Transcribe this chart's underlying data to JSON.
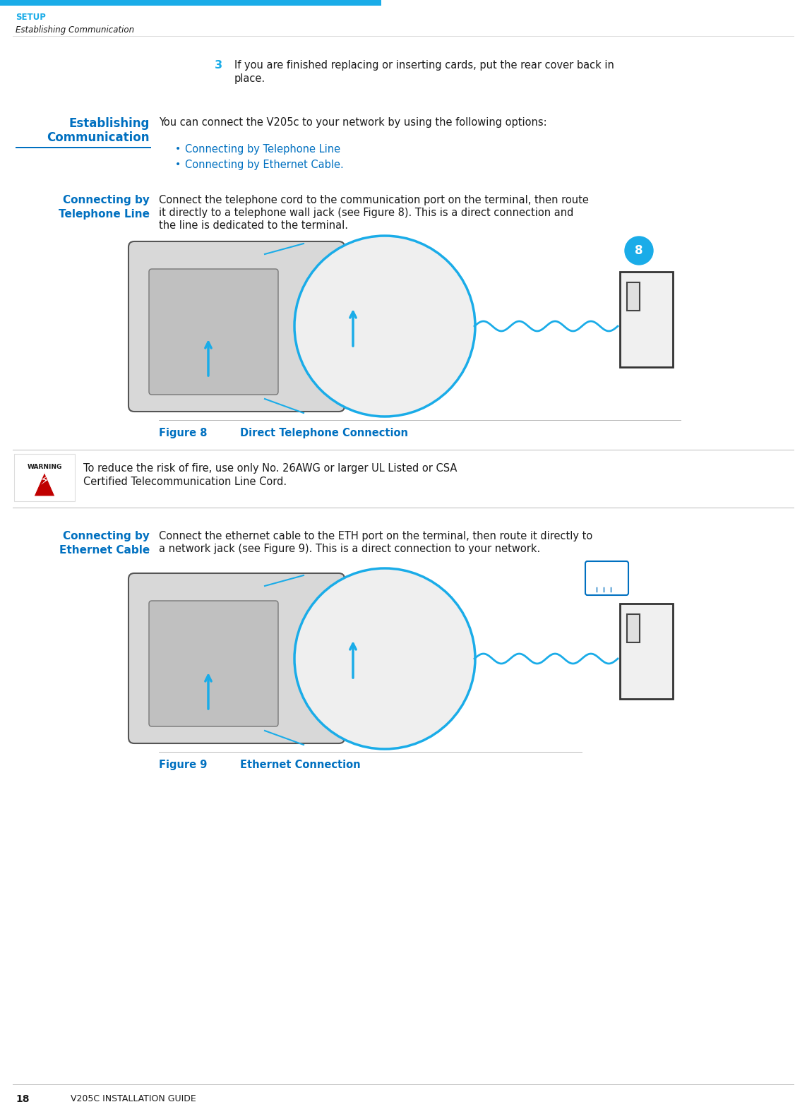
{
  "page_width": 11.43,
  "page_height": 15.78,
  "dpi": 100,
  "bg_color": "#ffffff",
  "sky_blue": "#1AACE8",
  "dark_blue": "#0070C0",
  "red_color": "#C00000",
  "black_color": "#1a1a1a",
  "light_gray": "#dddddd",
  "divider_color": "#bbbbbb",
  "header_bg_color": "#1AACE8",
  "header_setup": "SETUP",
  "header_sub": "Establishing Communication",
  "step_number": "3",
  "step_text_line1": "If you are finished replacing or inserting cards, put the rear cover back in",
  "step_text_line2": "place.",
  "heading1_line1": "Establishing",
  "heading1_line2": "Communication",
  "body1": "You can connect the V205c to your network by using the following options:",
  "bullet1": "Connecting by Telephone Line",
  "bullet2": "Connecting by Ethernet Cable.",
  "heading2_line1": "Connecting by",
  "heading2_line2": "Telephone Line",
  "body2_line1": "Connect the telephone cord to the communication port on the terminal, then route",
  "body2_line2": "it directly to a telephone wall jack (see Figure 8). This is a direct connection and",
  "body2_line3": "the line is dedicated to the terminal.",
  "fig8_label": "Figure 8",
  "fig8_caption": "Direct Telephone Connection",
  "warning_title": "WARNING",
  "warning_line1": "To reduce the risk of fire, use only No. 26AWG or larger UL Listed or CSA",
  "warning_line2": "Certified Telecommunication Line Cord.",
  "heading3_line1": "Connecting by",
  "heading3_line2": "Ethernet Cable",
  "body3_line1": "Connect the ethernet cable to the ETH port on the terminal, then route it directly to",
  "body3_line2": "a network jack (see Figure 9). This is a direct connection to your network.",
  "fig9_label": "Figure 9",
  "fig9_caption": "Ethernet Connection",
  "footer_page": "18",
  "footer_guide": "V205C INSTALLATION GUIDE"
}
